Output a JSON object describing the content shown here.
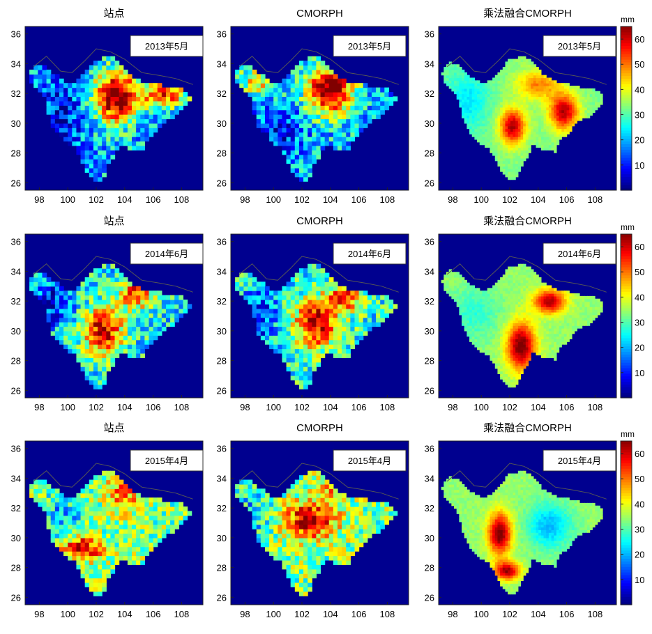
{
  "chart_data": [
    {
      "type": "heatmap",
      "title": "站点",
      "date_label": "2013年5月",
      "xticks": [
        "98",
        "100",
        "102",
        "104",
        "106",
        "108"
      ],
      "yticks": [
        "26",
        "28",
        "30",
        "32",
        "34",
        "36"
      ],
      "xlim": [
        97,
        109.5
      ],
      "ylim": [
        25.5,
        36.5
      ],
      "pattern": "station-2013-05",
      "colorbar": false
    },
    {
      "type": "heatmap",
      "title": "CMORPH",
      "date_label": "2013年5月",
      "xticks": [
        "98",
        "100",
        "102",
        "104",
        "106",
        "108"
      ],
      "yticks": [
        "26",
        "28",
        "30",
        "32",
        "34",
        "36"
      ],
      "xlim": [
        97,
        109.5
      ],
      "ylim": [
        25.5,
        36.5
      ],
      "pattern": "cmorph-2013-05",
      "colorbar": false
    },
    {
      "type": "heatmap",
      "title": "乘法融合CMORPH",
      "date_label": "2013年5月",
      "xticks": [
        "98",
        "100",
        "102",
        "104",
        "106",
        "108"
      ],
      "yticks": [
        "26",
        "28",
        "30",
        "32",
        "34",
        "36"
      ],
      "xlim": [
        97,
        109.5
      ],
      "ylim": [
        25.5,
        36.5
      ],
      "pattern": "merged-2013-05",
      "colorbar": true,
      "colorbar_unit": "mm",
      "colorbar_ticks": [
        "10",
        "20",
        "30",
        "40",
        "50",
        "60"
      ],
      "colorbar_range": [
        0,
        65
      ]
    },
    {
      "type": "heatmap",
      "title": "站点",
      "date_label": "2014年6月",
      "xticks": [
        "98",
        "100",
        "102",
        "104",
        "106",
        "108"
      ],
      "yticks": [
        "26",
        "28",
        "30",
        "32",
        "34",
        "36"
      ],
      "xlim": [
        97,
        109.5
      ],
      "ylim": [
        25.5,
        36.5
      ],
      "pattern": "station-2014-06",
      "colorbar": false
    },
    {
      "type": "heatmap",
      "title": "CMORPH",
      "date_label": "2014年6月",
      "xticks": [
        "98",
        "100",
        "102",
        "104",
        "106",
        "108"
      ],
      "yticks": [
        "26",
        "28",
        "30",
        "32",
        "34",
        "36"
      ],
      "xlim": [
        97,
        109.5
      ],
      "ylim": [
        25.5,
        36.5
      ],
      "pattern": "cmorph-2014-06",
      "colorbar": false
    },
    {
      "type": "heatmap",
      "title": "乘法融合CMORPH",
      "date_label": "2014年6月",
      "xticks": [
        "98",
        "100",
        "102",
        "104",
        "106",
        "108"
      ],
      "yticks": [
        "26",
        "28",
        "30",
        "32",
        "34",
        "36"
      ],
      "xlim": [
        97,
        109.5
      ],
      "ylim": [
        25.5,
        36.5
      ],
      "pattern": "merged-2014-06",
      "colorbar": true,
      "colorbar_unit": "mm",
      "colorbar_ticks": [
        "10",
        "20",
        "30",
        "40",
        "50",
        "60"
      ],
      "colorbar_range": [
        0,
        65
      ]
    },
    {
      "type": "heatmap",
      "title": "站点",
      "date_label": "2015年4月",
      "xticks": [
        "98",
        "100",
        "102",
        "104",
        "106",
        "108"
      ],
      "yticks": [
        "26",
        "28",
        "30",
        "32",
        "34",
        "36"
      ],
      "xlim": [
        97,
        109.5
      ],
      "ylim": [
        25.5,
        36.5
      ],
      "pattern": "station-2015-04",
      "colorbar": false
    },
    {
      "type": "heatmap",
      "title": "CMORPH",
      "date_label": "2015年4月",
      "xticks": [
        "98",
        "100",
        "102",
        "104",
        "106",
        "108"
      ],
      "yticks": [
        "26",
        "28",
        "30",
        "32",
        "34",
        "36"
      ],
      "xlim": [
        97,
        109.5
      ],
      "ylim": [
        25.5,
        36.5
      ],
      "pattern": "cmorph-2015-04",
      "colorbar": false
    },
    {
      "type": "heatmap",
      "title": "乘法融合CMORPH",
      "date_label": "2015年4月",
      "xticks": [
        "98",
        "100",
        "102",
        "104",
        "106",
        "108"
      ],
      "yticks": [
        "26",
        "28",
        "30",
        "32",
        "34",
        "36"
      ],
      "xlim": [
        97,
        109.5
      ],
      "ylim": [
        25.5,
        36.5
      ],
      "pattern": "merged-2015-04",
      "colorbar": true,
      "colorbar_unit": "mm",
      "colorbar_ticks": [
        "10",
        "20",
        "30",
        "40",
        "50",
        "60"
      ],
      "colorbar_range": [
        0,
        65
      ]
    }
  ],
  "colors": {
    "background": "#00008f",
    "border": "#7a7a7a",
    "jet_low": "#00008f",
    "jet_high": "#800000"
  }
}
